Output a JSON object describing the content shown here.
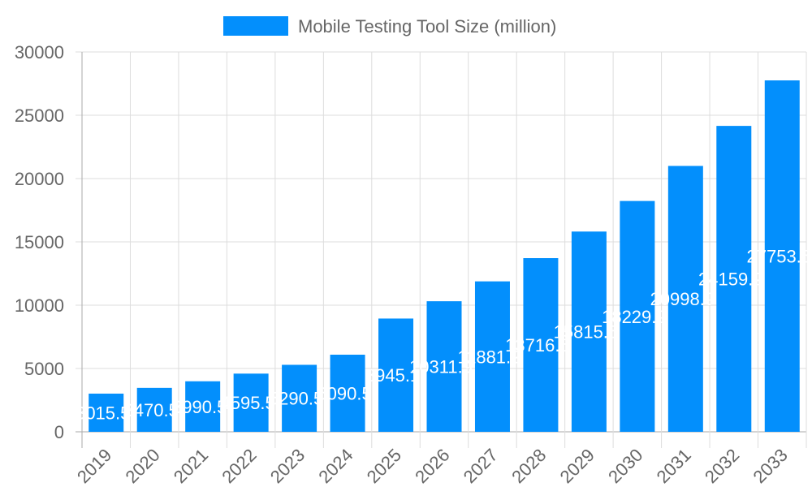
{
  "chart_data": {
    "type": "bar",
    "categories": [
      "2019",
      "2020",
      "2021",
      "2022",
      "2023",
      "2024",
      "2025",
      "2026",
      "2027",
      "2028",
      "2029",
      "2030",
      "2031",
      "2032",
      "2033"
    ],
    "series": [
      {
        "name": "Mobile Testing Tool Size (million)",
        "values": [
          3015.5,
          3470.5,
          3990.5,
          4595.5,
          5290.5,
          6090.5,
          8945.1,
          10311.9,
          11881.2,
          13716.5,
          15815.5,
          18229.9,
          20998.9,
          24159.2,
          27753.5
        ],
        "data_labels": [
          "3015.5",
          "3470.5",
          "3990.5",
          "4595.5",
          "5290.5",
          "6090.5",
          "8945.1",
          "10311.9",
          "11881.2",
          "13716.5",
          "15815.5",
          "18229.9",
          "20998.9",
          "24159.2",
          "27753.5"
        ]
      }
    ],
    "yticks": [
      "0",
      "5000",
      "10000",
      "15000",
      "20000",
      "25000",
      "30000"
    ],
    "ylim": [
      0,
      30000
    ],
    "grid": true,
    "legend": "top",
    "colors": {
      "bar": "#038ffc",
      "grid": "#dddddd",
      "text": "#666666",
      "label": "#ffffff"
    }
  }
}
